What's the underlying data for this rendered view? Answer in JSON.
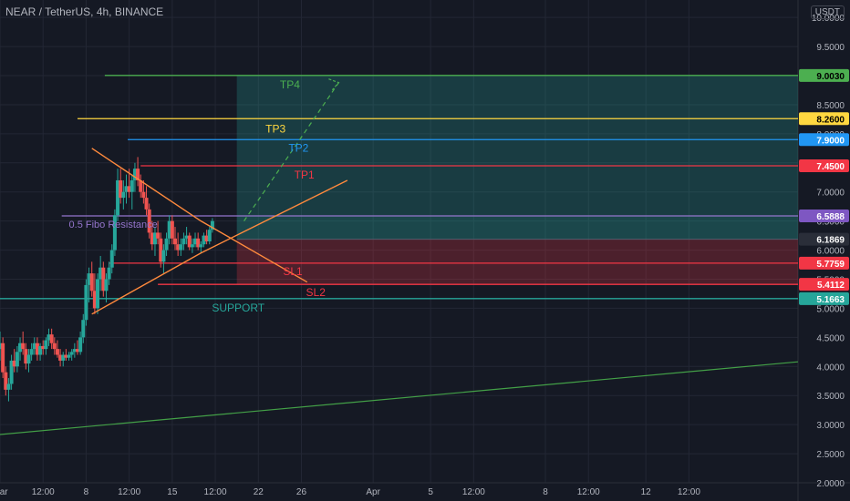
{
  "chart_data": {
    "type": "candlestick",
    "title": "NEAR / TetherUS, 4h, BINANCE",
    "currency": "USDT",
    "y_ticks": [
      "2.0000",
      "2.5000",
      "3.0000",
      "3.5000",
      "4.0000",
      "4.5000",
      "5.0000",
      "5.5000",
      "6.0000",
      "6.5000",
      "7.0000",
      "7.5000",
      "8.0000",
      "8.5000",
      "9.0000",
      "9.5000",
      "10.0000"
    ],
    "ylim": [
      2.0,
      10.3
    ],
    "xlim": [
      0,
      27.8
    ],
    "x_ticks": [
      {
        "x": 0.0,
        "label": "Mar"
      },
      {
        "x": 1.5,
        "label": "12:00"
      },
      {
        "x": 3.0,
        "label": "8"
      },
      {
        "x": 4.5,
        "label": "12:00"
      },
      {
        "x": 6.0,
        "label": "15"
      },
      {
        "x": 7.5,
        "label": "12:00"
      },
      {
        "x": 9.0,
        "label": "22"
      },
      {
        "x": 10.5,
        "label": "26"
      },
      {
        "x": 13.0,
        "label": "Apr"
      },
      {
        "x": 15.0,
        "label": "5"
      },
      {
        "x": 16.5,
        "label": "12:00"
      },
      {
        "x": 19.0,
        "label": "8"
      },
      {
        "x": 20.5,
        "label": "12:00"
      },
      {
        "x": 22.5,
        "label": "12"
      },
      {
        "x": 24.0,
        "label": "12:00"
      }
    ],
    "levels": [
      {
        "label": "TP4",
        "value": 9.003,
        "badge": "9.0030",
        "color": "#4caf50"
      },
      {
        "label": "TP3",
        "value": 8.26,
        "badge": "8.2600",
        "color": "#ffd740"
      },
      {
        "label": "TP2",
        "value": 7.9,
        "badge": "7.9000",
        "color": "#2196f3"
      },
      {
        "label": "TP1",
        "value": 7.45,
        "badge": "7.4500",
        "color": "#f23645"
      },
      {
        "label": "0.5 Fibo Resistance",
        "value": 6.5888,
        "badge": "6.5888",
        "color": "#9575cd"
      },
      {
        "label": "",
        "value": 6.1869,
        "badge": "6.1869",
        "color": "#555b6b"
      },
      {
        "label": "SL1",
        "value": 5.7759,
        "badge": "5.7759",
        "color": "#f23645"
      },
      {
        "label": "SL2",
        "value": 5.4112,
        "badge": "5.4112",
        "color": "#f23645"
      },
      {
        "label": "SUPPORT",
        "value": 5.1663,
        "badge": "5.1663",
        "color": "#26a69a"
      }
    ],
    "triangle_upper": [
      [
        3.2,
        7.75
      ],
      [
        7.0,
        6.5
      ],
      [
        10.7,
        5.45
      ]
    ],
    "triangle_lower": [
      [
        3.2,
        4.9
      ],
      [
        7.0,
        5.95
      ],
      [
        12.1,
        7.2
      ]
    ],
    "long_trend": [
      [
        0.0,
        2.83
      ],
      [
        27.8,
        4.08
      ]
    ],
    "target_path": [
      [
        8.5,
        6.5
      ],
      [
        11.8,
        8.88
      ]
    ],
    "candles": [
      {
        "x": 0.0,
        "o": 4.3,
        "h": 4.6,
        "l": 4.1,
        "c": 4.4
      },
      {
        "x": 0.1,
        "o": 4.4,
        "h": 4.5,
        "l": 3.8,
        "c": 3.9
      },
      {
        "x": 0.2,
        "o": 3.9,
        "h": 4.0,
        "l": 3.5,
        "c": 3.6
      },
      {
        "x": 0.3,
        "o": 3.6,
        "h": 3.8,
        "l": 3.4,
        "c": 3.7
      },
      {
        "x": 0.4,
        "o": 3.7,
        "h": 4.2,
        "l": 3.6,
        "c": 4.1
      },
      {
        "x": 0.5,
        "o": 4.1,
        "h": 4.3,
        "l": 3.9,
        "c": 4.0
      },
      {
        "x": 0.6,
        "o": 4.0,
        "h": 4.35,
        "l": 3.9,
        "c": 4.25
      },
      {
        "x": 0.7,
        "o": 4.25,
        "h": 4.5,
        "l": 4.1,
        "c": 4.4
      },
      {
        "x": 0.8,
        "o": 4.4,
        "h": 4.6,
        "l": 4.2,
        "c": 4.3
      },
      {
        "x": 0.9,
        "o": 4.3,
        "h": 4.4,
        "l": 3.95,
        "c": 4.05
      },
      {
        "x": 1.0,
        "o": 4.05,
        "h": 4.3,
        "l": 3.9,
        "c": 4.2
      },
      {
        "x": 1.1,
        "o": 4.2,
        "h": 4.4,
        "l": 4.1,
        "c": 4.3
      },
      {
        "x": 1.2,
        "o": 4.3,
        "h": 4.5,
        "l": 4.2,
        "c": 4.4
      },
      {
        "x": 1.3,
        "o": 4.4,
        "h": 4.5,
        "l": 4.1,
        "c": 4.2
      },
      {
        "x": 1.4,
        "o": 4.2,
        "h": 4.4,
        "l": 4.1,
        "c": 4.35
      },
      {
        "x": 1.5,
        "o": 4.35,
        "h": 4.45,
        "l": 4.2,
        "c": 4.3
      },
      {
        "x": 1.6,
        "o": 4.3,
        "h": 4.5,
        "l": 4.2,
        "c": 4.45
      },
      {
        "x": 1.7,
        "o": 4.45,
        "h": 4.65,
        "l": 4.35,
        "c": 4.55
      },
      {
        "x": 1.8,
        "o": 4.55,
        "h": 4.65,
        "l": 4.3,
        "c": 4.4
      },
      {
        "x": 1.9,
        "o": 4.4,
        "h": 4.5,
        "l": 4.2,
        "c": 4.3
      },
      {
        "x": 2.0,
        "o": 4.3,
        "h": 4.45,
        "l": 4.15,
        "c": 4.2
      },
      {
        "x": 2.1,
        "o": 4.2,
        "h": 4.3,
        "l": 4.0,
        "c": 4.1
      },
      {
        "x": 2.2,
        "o": 4.1,
        "h": 4.25,
        "l": 4.0,
        "c": 4.2
      },
      {
        "x": 2.3,
        "o": 4.2,
        "h": 4.3,
        "l": 4.1,
        "c": 4.15
      },
      {
        "x": 2.4,
        "o": 4.15,
        "h": 4.25,
        "l": 4.1,
        "c": 4.2
      },
      {
        "x": 2.5,
        "o": 4.2,
        "h": 4.3,
        "l": 4.1,
        "c": 4.25
      },
      {
        "x": 2.6,
        "o": 4.25,
        "h": 4.4,
        "l": 4.15,
        "c": 4.3
      },
      {
        "x": 2.7,
        "o": 4.3,
        "h": 4.45,
        "l": 4.2,
        "c": 4.25
      },
      {
        "x": 2.8,
        "o": 4.25,
        "h": 4.6,
        "l": 4.2,
        "c": 4.5
      },
      {
        "x": 2.9,
        "o": 4.5,
        "h": 4.9,
        "l": 4.4,
        "c": 4.8
      },
      {
        "x": 3.0,
        "o": 4.8,
        "h": 5.5,
        "l": 4.7,
        "c": 5.4
      },
      {
        "x": 3.1,
        "o": 5.4,
        "h": 5.7,
        "l": 5.1,
        "c": 5.6
      },
      {
        "x": 3.2,
        "o": 5.6,
        "h": 5.8,
        "l": 5.2,
        "c": 5.3
      },
      {
        "x": 3.3,
        "o": 5.3,
        "h": 5.6,
        "l": 4.9,
        "c": 5.0
      },
      {
        "x": 3.4,
        "o": 5.0,
        "h": 5.6,
        "l": 4.9,
        "c": 5.5
      },
      {
        "x": 3.5,
        "o": 5.5,
        "h": 5.9,
        "l": 5.3,
        "c": 5.7
      },
      {
        "x": 3.6,
        "o": 5.7,
        "h": 5.8,
        "l": 5.2,
        "c": 5.3
      },
      {
        "x": 3.7,
        "o": 5.3,
        "h": 5.6,
        "l": 5.1,
        "c": 5.5
      },
      {
        "x": 3.8,
        "o": 5.5,
        "h": 5.8,
        "l": 5.4,
        "c": 5.7
      },
      {
        "x": 3.9,
        "o": 5.7,
        "h": 6.1,
        "l": 5.6,
        "c": 6.0
      },
      {
        "x": 4.0,
        "o": 6.0,
        "h": 6.7,
        "l": 5.9,
        "c": 6.6
      },
      {
        "x": 4.1,
        "o": 6.6,
        "h": 7.4,
        "l": 6.5,
        "c": 7.2
      },
      {
        "x": 4.2,
        "o": 7.2,
        "h": 7.4,
        "l": 6.8,
        "c": 6.9
      },
      {
        "x": 4.3,
        "o": 6.9,
        "h": 7.2,
        "l": 6.7,
        "c": 7.0
      },
      {
        "x": 4.4,
        "o": 7.0,
        "h": 7.3,
        "l": 6.8,
        "c": 7.1
      },
      {
        "x": 4.5,
        "o": 7.1,
        "h": 7.4,
        "l": 6.9,
        "c": 7.0
      },
      {
        "x": 4.6,
        "o": 7.0,
        "h": 7.3,
        "l": 6.7,
        "c": 7.2
      },
      {
        "x": 4.7,
        "o": 7.2,
        "h": 7.5,
        "l": 7.0,
        "c": 7.4
      },
      {
        "x": 4.8,
        "o": 7.4,
        "h": 7.6,
        "l": 7.1,
        "c": 7.2
      },
      {
        "x": 4.9,
        "o": 7.2,
        "h": 7.3,
        "l": 6.9,
        "c": 7.0
      },
      {
        "x": 5.0,
        "o": 7.0,
        "h": 7.2,
        "l": 6.8,
        "c": 6.9
      },
      {
        "x": 5.1,
        "o": 6.9,
        "h": 7.1,
        "l": 6.6,
        "c": 6.7
      },
      {
        "x": 5.2,
        "o": 6.7,
        "h": 6.8,
        "l": 6.2,
        "c": 6.3
      },
      {
        "x": 5.3,
        "o": 6.3,
        "h": 6.5,
        "l": 6.0,
        "c": 6.1
      },
      {
        "x": 5.4,
        "o": 6.1,
        "h": 6.4,
        "l": 5.9,
        "c": 6.3
      },
      {
        "x": 5.5,
        "o": 6.3,
        "h": 6.5,
        "l": 6.1,
        "c": 6.2
      },
      {
        "x": 5.6,
        "o": 6.2,
        "h": 6.3,
        "l": 5.7,
        "c": 5.8
      },
      {
        "x": 5.7,
        "o": 5.8,
        "h": 6.1,
        "l": 5.6,
        "c": 6.0
      },
      {
        "x": 5.8,
        "o": 6.0,
        "h": 6.3,
        "l": 5.9,
        "c": 6.2
      },
      {
        "x": 5.9,
        "o": 6.2,
        "h": 6.6,
        "l": 6.1,
        "c": 6.5
      },
      {
        "x": 6.0,
        "o": 6.5,
        "h": 6.6,
        "l": 6.1,
        "c": 6.2
      },
      {
        "x": 6.1,
        "o": 6.2,
        "h": 6.4,
        "l": 6.0,
        "c": 6.1
      },
      {
        "x": 6.2,
        "o": 6.1,
        "h": 6.3,
        "l": 5.9,
        "c": 6.0
      },
      {
        "x": 6.3,
        "o": 6.0,
        "h": 6.2,
        "l": 5.9,
        "c": 6.1
      },
      {
        "x": 6.4,
        "o": 6.1,
        "h": 6.3,
        "l": 6.0,
        "c": 6.2
      },
      {
        "x": 6.5,
        "o": 6.2,
        "h": 6.4,
        "l": 6.1,
        "c": 6.25
      },
      {
        "x": 6.6,
        "o": 6.25,
        "h": 6.3,
        "l": 6.0,
        "c": 6.05
      },
      {
        "x": 6.7,
        "o": 6.05,
        "h": 6.2,
        "l": 5.95,
        "c": 6.1
      },
      {
        "x": 6.8,
        "o": 6.1,
        "h": 6.3,
        "l": 6.05,
        "c": 6.2
      },
      {
        "x": 6.9,
        "o": 6.2,
        "h": 6.3,
        "l": 6.0,
        "c": 6.05
      },
      {
        "x": 7.0,
        "o": 6.05,
        "h": 6.15,
        "l": 5.95,
        "c": 6.1
      },
      {
        "x": 7.1,
        "o": 6.1,
        "h": 6.3,
        "l": 6.05,
        "c": 6.25
      },
      {
        "x": 7.2,
        "o": 6.25,
        "h": 6.35,
        "l": 6.1,
        "c": 6.15
      },
      {
        "x": 7.3,
        "o": 6.15,
        "h": 6.4,
        "l": 6.1,
        "c": 6.35
      },
      {
        "x": 7.4,
        "o": 6.35,
        "h": 6.55,
        "l": 6.3,
        "c": 6.5
      }
    ]
  }
}
